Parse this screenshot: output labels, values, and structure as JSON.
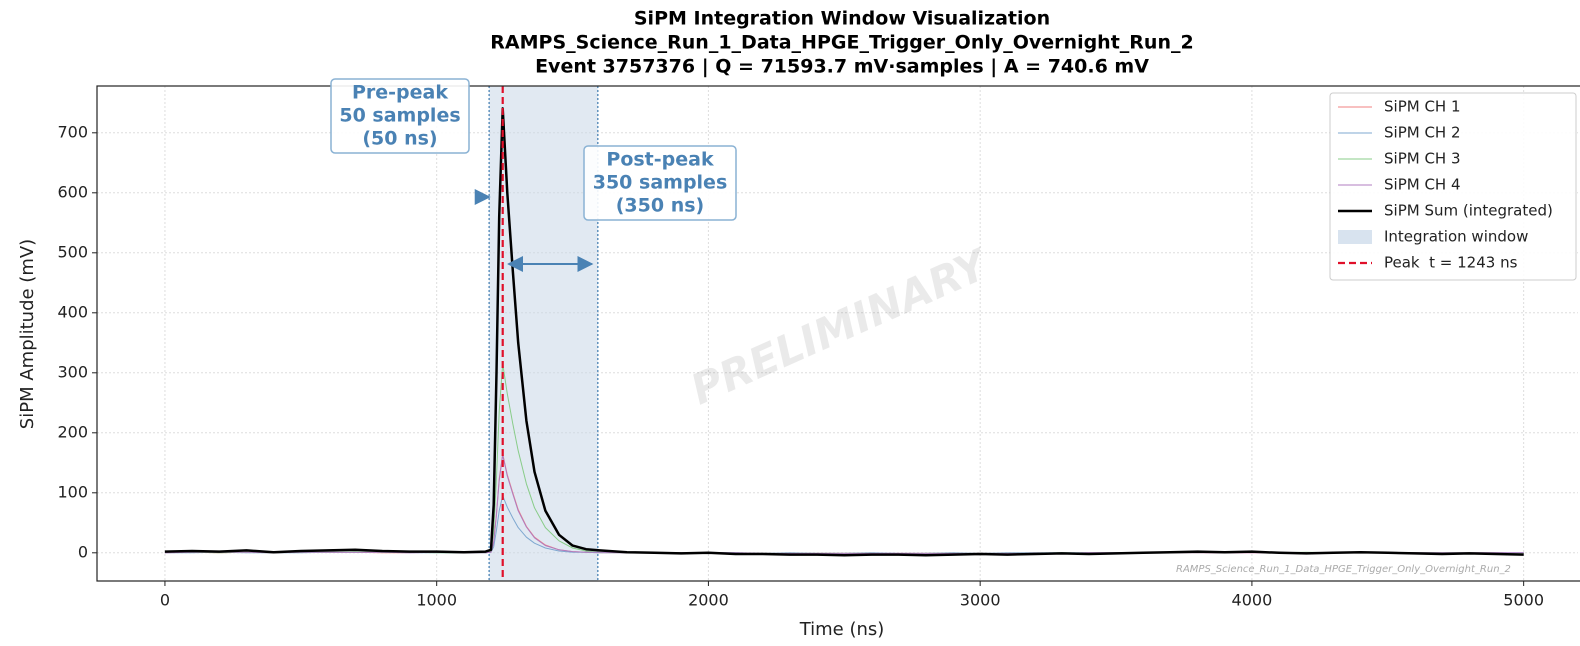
{
  "chart_data": {
    "type": "line",
    "title": [
      "SiPM Integration Window Visualization",
      "RAMPS_Science_Run_1_Data_HPGE_Trigger_Only_Overnight_Run_2",
      "Event 3757376  |  Q = 71593.7 mV·samples  |  A = 740.6 mV"
    ],
    "xlabel": "Time (ns)",
    "ylabel": "SiPM Amplitude (mV)",
    "xlim": [
      -250,
      5200
    ],
    "ylim": [
      -47,
      778
    ],
    "xticks": [
      0,
      1000,
      2000,
      3000,
      4000,
      5000
    ],
    "yticks": [
      0,
      100,
      200,
      300,
      400,
      500,
      600,
      700
    ],
    "grid": true,
    "legend": "upper right",
    "x": [
      0,
      100,
      200,
      300,
      400,
      500,
      600,
      700,
      800,
      900,
      1000,
      1100,
      1180,
      1200,
      1210,
      1220,
      1230,
      1243,
      1260,
      1280,
      1300,
      1330,
      1360,
      1400,
      1450,
      1500,
      1550,
      1600,
      1700,
      1800,
      1900,
      2000,
      2100,
      2200,
      2300,
      2400,
      2500,
      2600,
      2700,
      2800,
      2900,
      3000,
      3100,
      3200,
      3300,
      3400,
      3500,
      3600,
      3700,
      3800,
      3900,
      4000,
      4100,
      4200,
      4300,
      4400,
      4500,
      4600,
      4700,
      4800,
      4900,
      5000
    ],
    "series": [
      {
        "name": "SiPM CH 1",
        "color": "#f08080",
        "width": 1,
        "values": [
          0,
          1,
          0,
          1,
          0,
          1,
          1,
          1,
          0,
          0,
          1,
          0,
          1,
          1,
          17,
          66,
          123,
          165,
          130,
          100,
          72,
          44,
          26,
          13,
          5,
          2,
          1,
          0,
          0,
          0,
          0,
          0,
          -1,
          -1,
          -1,
          -1,
          -1,
          -1,
          -1,
          -1,
          -1,
          -1,
          -1,
          0,
          -1,
          0,
          0,
          0,
          0,
          0,
          0,
          0,
          0,
          0,
          0,
          0,
          0,
          0,
          0,
          0,
          0,
          -1
        ]
      },
      {
        "name": "SiPM CH 2",
        "color": "#7fa8d0",
        "width": 1,
        "values": [
          0,
          0,
          1,
          0,
          0,
          0,
          1,
          1,
          1,
          0,
          0,
          0,
          0,
          1,
          10,
          38,
          70,
          95,
          76,
          58,
          42,
          26,
          16,
          8,
          3,
          1,
          1,
          0,
          0,
          0,
          0,
          0,
          0,
          -1,
          0,
          -1,
          -1,
          0,
          -1,
          -1,
          0,
          -1,
          0,
          0,
          0,
          0,
          0,
          0,
          0,
          1,
          0,
          1,
          0,
          0,
          0,
          0,
          0,
          0,
          0,
          0,
          0,
          0
        ]
      },
      {
        "name": "SiPM CH 3",
        "color": "#88cc88",
        "width": 1,
        "values": [
          1,
          1,
          0,
          1,
          0,
          1,
          1,
          2,
          1,
          1,
          0,
          0,
          0,
          2,
          34,
          126,
          235,
          315,
          265,
          215,
          170,
          115,
          75,
          42,
          20,
          8,
          3,
          1,
          1,
          0,
          0,
          0,
          -1,
          -1,
          -1,
          -1,
          -1,
          -1,
          -2,
          -1,
          -1,
          -1,
          -1,
          -1,
          0,
          -1,
          0,
          0,
          0,
          0,
          1,
          1,
          0,
          1,
          0,
          0,
          0,
          0,
          0,
          0,
          -1,
          -1
        ]
      },
      {
        "name": "SiPM CH 4",
        "color": "#b07cc0",
        "width": 1,
        "values": [
          0,
          1,
          1,
          1,
          0,
          1,
          1,
          1,
          1,
          0,
          1,
          0,
          0,
          1,
          18,
          64,
          120,
          163,
          128,
          98,
          70,
          43,
          25,
          12,
          5,
          2,
          1,
          1,
          0,
          0,
          0,
          0,
          0,
          -1,
          -1,
          -1,
          -1,
          -1,
          -1,
          -1,
          -1,
          -1,
          -1,
          -1,
          -1,
          0,
          0,
          0,
          0,
          0,
          0,
          0,
          0,
          0,
          0,
          0,
          0,
          0,
          0,
          0,
          0,
          0
        ]
      },
      {
        "name": "SiPM Sum (integrated)",
        "color": "#000000",
        "width": 2.5,
        "values": [
          2,
          3,
          2,
          4,
          1,
          3,
          4,
          5,
          3,
          2,
          2,
          1,
          2,
          5,
          80,
          300,
          560,
          740.6,
          600,
          470,
          350,
          220,
          135,
          70,
          30,
          12,
          6,
          4,
          1,
          0,
          -1,
          0,
          -2,
          -2,
          -3,
          -3,
          -4,
          -3,
          -3,
          -4,
          -3,
          -2,
          -3,
          -2,
          -1,
          -2,
          -1,
          0,
          1,
          2,
          1,
          2,
          0,
          -1,
          0,
          1,
          0,
          -1,
          -2,
          -1,
          -2,
          -3
        ]
      }
    ],
    "window": {
      "start": 1193,
      "end": 1593,
      "color": "#c8d7e8",
      "label": "Integration window"
    },
    "peak_line": {
      "x": 1243,
      "color": "#e0102a",
      "label": "Peak  t = 1243 ns"
    },
    "annotations": [
      {
        "lines": [
          "Pre-peak",
          "50 samples",
          "(50 ns)"
        ]
      },
      {
        "lines": [
          "Post-peak",
          "350 samples",
          "(350 ns)"
        ]
      }
    ],
    "watermark": "PRELIMINARY",
    "footer": "RAMPS_Science_Run_1_Data_HPGE_Trigger_Only_Overnight_Run_2"
  }
}
